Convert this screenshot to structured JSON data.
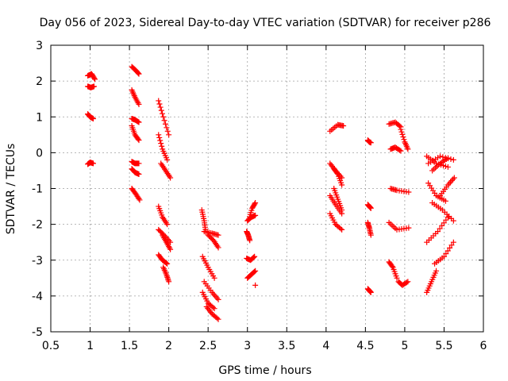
{
  "chart_data": {
    "type": "scatter",
    "title": "Day 056 of 2023, Sidereal Day-to-day VTEC variation (SDTVAR) for receiver p286",
    "xlabel": "GPS time / hours",
    "ylabel": "SDTVAR / TECUs",
    "xlim": [
      0.5,
      6
    ],
    "ylim": [
      -5,
      3
    ],
    "xticks": [
      "0.5",
      "1",
      "1.5",
      "2",
      "2.5",
      "3",
      "3.5",
      "4",
      "4.5",
      "5",
      "5.5",
      "6"
    ],
    "yticks": [
      "-5",
      "-4",
      "-3",
      "-2",
      "-1",
      "0",
      "1",
      "2",
      "3"
    ],
    "grid": true,
    "marker": "+",
    "color": "#ff0000",
    "segments": [
      {
        "x": [
          0.97,
          1.02,
          1.06
        ],
        "y": [
          2.15,
          2.2,
          2.05
        ]
      },
      {
        "x": [
          0.97,
          1.01,
          1.05
        ],
        "y": [
          1.85,
          1.82,
          1.85
        ]
      },
      {
        "x": [
          0.97,
          1.0,
          1.04
        ],
        "y": [
          1.08,
          1.0,
          0.95
        ]
      },
      {
        "x": [
          0.97,
          1.0,
          1.04
        ],
        "y": [
          -0.32,
          -0.27,
          -0.3
        ]
      },
      {
        "x": [
          1.53,
          1.58,
          1.62
        ],
        "y": [
          2.4,
          2.3,
          2.2
        ]
      },
      {
        "x": [
          1.53,
          1.57,
          1.62
        ],
        "y": [
          1.75,
          1.55,
          1.35
        ]
      },
      {
        "x": [
          1.53,
          1.57,
          1.62
        ],
        "y": [
          0.95,
          0.92,
          0.85
        ]
      },
      {
        "x": [
          1.53,
          1.57,
          1.62
        ],
        "y": [
          0.75,
          0.5,
          0.35
        ]
      },
      {
        "x": [
          1.53,
          1.57,
          1.62
        ],
        "y": [
          -0.25,
          -0.3,
          -0.3
        ]
      },
      {
        "x": [
          1.53,
          1.57,
          1.62
        ],
        "y": [
          -0.45,
          -0.55,
          -0.6
        ]
      },
      {
        "x": [
          1.53,
          1.58,
          1.63
        ],
        "y": [
          -1.0,
          -1.15,
          -1.32
        ]
      },
      {
        "x": [
          1.87,
          1.93,
          2.0
        ],
        "y": [
          1.45,
          1.0,
          0.5
        ]
      },
      {
        "x": [
          1.87,
          1.92,
          1.98
        ],
        "y": [
          0.5,
          0.1,
          -0.2
        ]
      },
      {
        "x": [
          1.9,
          1.96,
          2.02
        ],
        "y": [
          -0.3,
          -0.5,
          -0.7
        ]
      },
      {
        "x": [
          1.87,
          1.92,
          1.98
        ],
        "y": [
          -1.5,
          -1.8,
          -2.0
        ]
      },
      {
        "x": [
          1.87,
          1.94,
          2.02
        ],
        "y": [
          -2.15,
          -2.3,
          -2.5
        ]
      },
      {
        "x": [
          1.92,
          1.97,
          2.02
        ],
        "y": [
          -2.3,
          -2.5,
          -2.7
        ]
      },
      {
        "x": [
          1.87,
          1.92,
          1.98
        ],
        "y": [
          -2.85,
          -3.0,
          -3.1
        ]
      },
      {
        "x": [
          1.93,
          1.97,
          2.0
        ],
        "y": [
          -3.2,
          -3.4,
          -3.6
        ]
      },
      {
        "x": [
          2.42,
          2.45,
          2.47
        ],
        "y": [
          -1.6,
          -1.9,
          -2.2
        ]
      },
      {
        "x": [
          2.45,
          2.55,
          2.63
        ],
        "y": [
          -2.2,
          -2.25,
          -2.3
        ]
      },
      {
        "x": [
          2.5,
          2.57,
          2.63
        ],
        "y": [
          -2.3,
          -2.45,
          -2.65
        ]
      },
      {
        "x": [
          2.43,
          2.5,
          2.58
        ],
        "y": [
          -2.9,
          -3.2,
          -3.5
        ]
      },
      {
        "x": [
          2.45,
          2.55,
          2.63
        ],
        "y": [
          -3.6,
          -3.9,
          -4.1
        ]
      },
      {
        "x": [
          2.43,
          2.5,
          2.58
        ],
        "y": [
          -3.9,
          -4.2,
          -4.35
        ]
      },
      {
        "x": [
          2.48,
          2.55,
          2.63
        ],
        "y": [
          -4.3,
          -4.5,
          -4.65
        ]
      },
      {
        "x": [
          3.02,
          3.06,
          3.1
        ],
        "y": [
          -1.85,
          -1.55,
          -1.4
        ]
      },
      {
        "x": [
          3.0,
          3.05,
          3.1
        ],
        "y": [
          -1.9,
          -1.8,
          -1.75
        ]
      },
      {
        "x": [
          2.99,
          3.01,
          3.03
        ],
        "y": [
          -2.2,
          -2.3,
          -2.45
        ]
      },
      {
        "x": [
          2.99,
          3.04,
          3.09
        ],
        "y": [
          -2.95,
          -3.0,
          -2.9
        ]
      },
      {
        "x": [
          3.0,
          3.05,
          3.1
        ],
        "y": [
          -3.5,
          -3.4,
          -3.3
        ]
      },
      {
        "x": [
          3.1
        ],
        "y": [
          -3.7
        ]
      },
      {
        "x": [
          4.05,
          4.15,
          4.22
        ],
        "y": [
          0.6,
          0.78,
          0.75
        ]
      },
      {
        "x": [
          4.05,
          4.12,
          4.2
        ],
        "y": [
          -0.3,
          -0.5,
          -0.7
        ]
      },
      {
        "x": [
          4.1,
          4.15,
          4.2
        ],
        "y": [
          -0.45,
          -0.6,
          -0.9
        ]
      },
      {
        "x": [
          4.1,
          4.15,
          4.2
        ],
        "y": [
          -1.0,
          -1.3,
          -1.6
        ]
      },
      {
        "x": [
          4.05,
          4.12,
          4.2
        ],
        "y": [
          -1.2,
          -1.45,
          -1.7
        ]
      },
      {
        "x": [
          4.05,
          4.12,
          4.2
        ],
        "y": [
          -1.7,
          -2.0,
          -2.15
        ]
      },
      {
        "x": [
          4.53,
          4.55,
          4.57
        ],
        "y": [
          0.35,
          0.3,
          0.28
        ]
      },
      {
        "x": [
          4.53,
          4.55,
          4.57
        ],
        "y": [
          -1.45,
          -1.5,
          -1.55
        ]
      },
      {
        "x": [
          4.53,
          4.55,
          4.57
        ],
        "y": [
          -1.95,
          -2.1,
          -2.3
        ]
      },
      {
        "x": [
          4.53,
          4.55,
          4.57
        ],
        "y": [
          -3.8,
          -3.85,
          -3.9
        ]
      },
      {
        "x": [
          4.8,
          4.88,
          4.95
        ],
        "y": [
          0.8,
          0.85,
          0.72
        ]
      },
      {
        "x": [
          4.95,
          5.0,
          5.04
        ],
        "y": [
          0.65,
          0.3,
          0.1
        ]
      },
      {
        "x": [
          4.82,
          4.88,
          4.95
        ],
        "y": [
          0.1,
          0.15,
          0.05
        ]
      },
      {
        "x": [
          4.82,
          4.9,
          5.05
        ],
        "y": [
          -1.0,
          -1.05,
          -1.1
        ]
      },
      {
        "x": [
          4.8,
          4.9,
          5.05
        ],
        "y": [
          -1.95,
          -2.15,
          -2.1
        ]
      },
      {
        "x": [
          4.8,
          4.85,
          4.9
        ],
        "y": [
          -3.05,
          -3.2,
          -3.5
        ]
      },
      {
        "x": [
          4.92,
          4.97,
          5.04
        ],
        "y": [
          -3.6,
          -3.7,
          -3.6
        ]
      },
      {
        "x": [
          5.28,
          5.4,
          5.55
        ],
        "y": [
          -0.1,
          -0.3,
          -0.4
        ]
      },
      {
        "x": [
          5.3,
          5.45,
          5.62
        ],
        "y": [
          -0.3,
          -0.1,
          -0.2
        ]
      },
      {
        "x": [
          5.35,
          5.45,
          5.55
        ],
        "y": [
          -0.5,
          -0.3,
          -0.15
        ]
      },
      {
        "x": [
          5.3,
          5.4,
          5.52
        ],
        "y": [
          -0.85,
          -1.2,
          -1.35
        ]
      },
      {
        "x": [
          5.45,
          5.55,
          5.63
        ],
        "y": [
          -1.2,
          -0.9,
          -0.7
        ]
      },
      {
        "x": [
          5.35,
          5.48,
          5.62
        ],
        "y": [
          -1.4,
          -1.6,
          -1.9
        ]
      },
      {
        "x": [
          5.28,
          5.42,
          5.55
        ],
        "y": [
          -2.5,
          -2.2,
          -1.8
        ]
      },
      {
        "x": [
          5.38,
          5.5,
          5.62
        ],
        "y": [
          -3.1,
          -2.9,
          -2.5
        ]
      },
      {
        "x": [
          5.28,
          5.34,
          5.4
        ],
        "y": [
          -3.9,
          -3.6,
          -3.3
        ]
      }
    ]
  }
}
